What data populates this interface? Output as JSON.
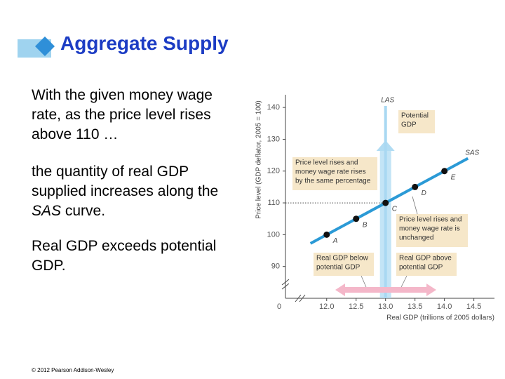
{
  "slide": {
    "title": "Aggregate Supply",
    "paragraphs": [
      [
        "With the given money wage rate, as the price level rises above 110 …"
      ],
      [
        "the quantity of real GDP supplied increases along the ",
        "SAS",
        " curve."
      ],
      [
        "Real GDP exceeds potential GDP."
      ]
    ],
    "footer": "© 2012 Pearson Addison-Wesley"
  },
  "chart_data": {
    "type": "line",
    "x_label": "Real GDP (trillions of 2005 dollars)",
    "y_label": "Price level (GDP deflator, 2005 = 100)",
    "origin_label": "0",
    "xlim": [
      11.3,
      14.85
    ],
    "ylim": [
      80,
      144
    ],
    "xticks": [
      {
        "value": 12,
        "label": "12.0"
      },
      {
        "value": 12.5,
        "label": "12.5"
      },
      {
        "value": 13,
        "label": "13.0"
      },
      {
        "value": 13.5,
        "label": "13.5"
      },
      {
        "value": 14,
        "label": "14.0"
      },
      {
        "value": 14.5,
        "label": "14.5"
      }
    ],
    "yticks": [
      90,
      100,
      110,
      120,
      130,
      140
    ],
    "series": [
      {
        "name": "SAS",
        "color": "#2b9ad6",
        "x": [
          12,
          12.5,
          13,
          13.5,
          14
        ],
        "values": [
          100,
          105,
          110,
          115,
          120
        ],
        "point_labels": [
          "A",
          "B",
          "C",
          "D",
          "E"
        ]
      }
    ],
    "vlines": [
      {
        "name": "LAS",
        "x": 13,
        "color": "#a9d8f2"
      }
    ],
    "guide_y": 110,
    "annotations": [
      [
        "Potential",
        "GDP"
      ],
      [
        "Price level rises and",
        "money wage rate rises",
        "by the same percentage"
      ],
      [
        "Price level rises and",
        "money wage rate is",
        "unchanged"
      ],
      [
        "Real GDP below",
        "potential GDP"
      ],
      [
        "Real GDP above",
        "potential GDP"
      ]
    ]
  }
}
